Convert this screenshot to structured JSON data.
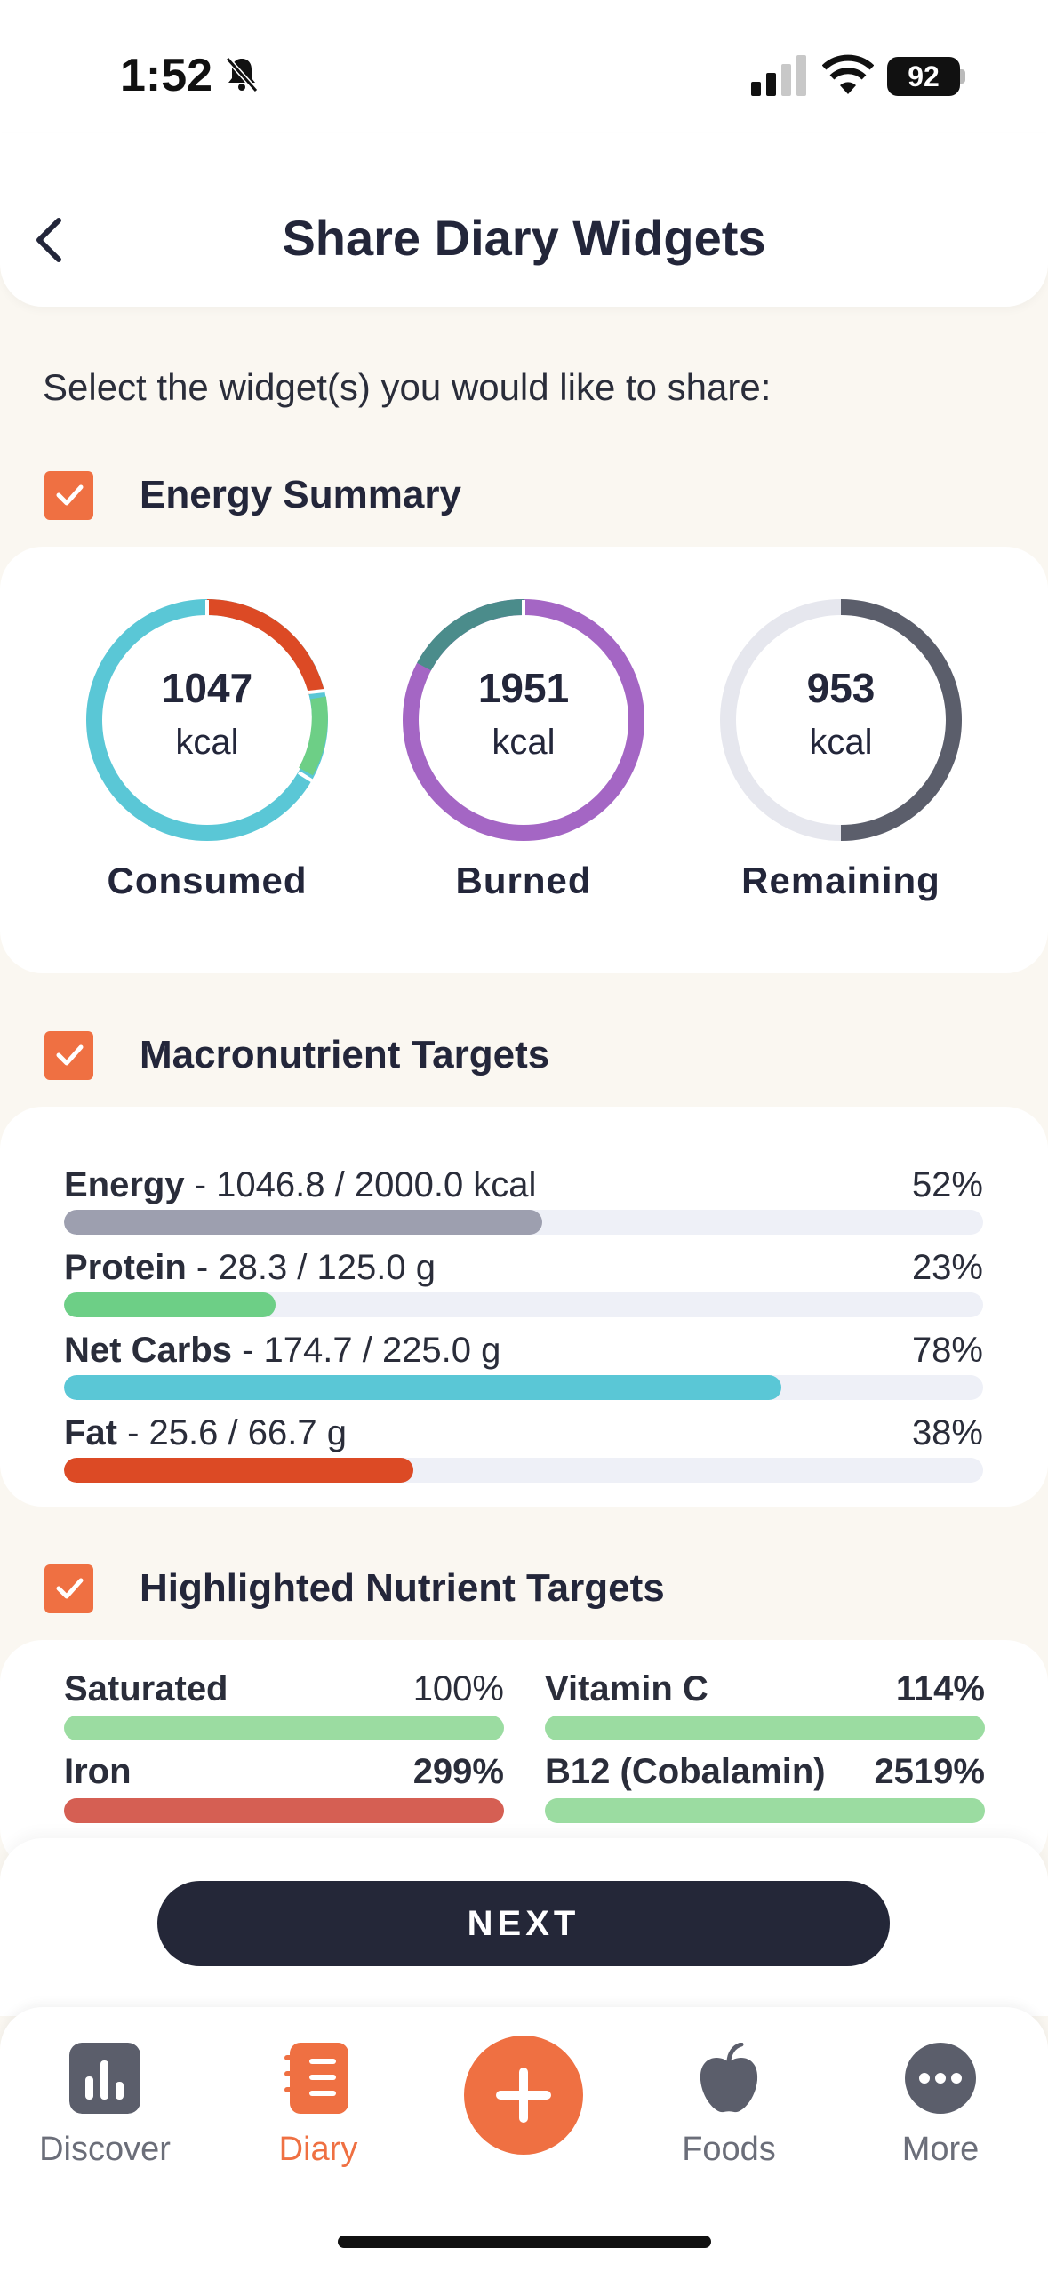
{
  "status": {
    "time": "1:52",
    "battery": "92"
  },
  "header": {
    "title": "Share Diary Widgets"
  },
  "instructions": "Select the widget(s) you would like to share:",
  "sections": {
    "energy": {
      "label": "Energy Summary",
      "checked": true
    },
    "macro": {
      "label": "Macronutrient Targets",
      "checked": true
    },
    "highlight": {
      "label": "Highlighted Nutrient Targets",
      "checked": true
    }
  },
  "energy_rings": [
    {
      "value": "1047",
      "unit": "kcal",
      "label": "Consumed"
    },
    {
      "value": "1951",
      "unit": "kcal",
      "label": "Burned"
    },
    {
      "value": "953",
      "unit": "kcal",
      "label": "Remaining"
    }
  ],
  "macros": [
    {
      "name": "Energy",
      "detail": " - 1046.8 / 2000.0 kcal",
      "percent": "52%",
      "fill": 0.52,
      "color": "#9d9faf"
    },
    {
      "name": "Protein",
      "detail": " - 28.3 / 125.0 g",
      "percent": "23%",
      "fill": 0.23,
      "color": "#6dcf86"
    },
    {
      "name": "Net Carbs",
      "detail": " - 174.7 / 225.0 g",
      "percent": "78%",
      "fill": 0.78,
      "color": "#5ac7d6"
    },
    {
      "name": "Fat",
      "detail": " - 25.6 / 66.7 g",
      "percent": "38%",
      "fill": 0.38,
      "color": "#dc4a25"
    }
  ],
  "highlighted": [
    {
      "name": "Saturated",
      "percent": "100%",
      "color": "#9bdca1"
    },
    {
      "name": "Vitamin C",
      "percent": "114%",
      "color": "#9bdca1"
    },
    {
      "name": "Iron",
      "percent": "299%",
      "color": "#d55f53"
    },
    {
      "name": "B12 (Cobalamin)",
      "percent": "2519%",
      "color": "#9bdca1"
    }
  ],
  "next_label": "NEXT",
  "tabs": [
    {
      "label": "Discover",
      "icon": "discover-icon"
    },
    {
      "label": "Diary",
      "icon": "diary-icon"
    },
    {
      "label": "Foods",
      "icon": "apple-icon"
    },
    {
      "label": "More",
      "icon": "more-icon"
    }
  ],
  "colors": {
    "accent": "#ef7042",
    "dark": "#242738",
    "consumed_main": "#5ac7d6",
    "burned": "#a466c4",
    "remaining": "#5b5e6b"
  }
}
